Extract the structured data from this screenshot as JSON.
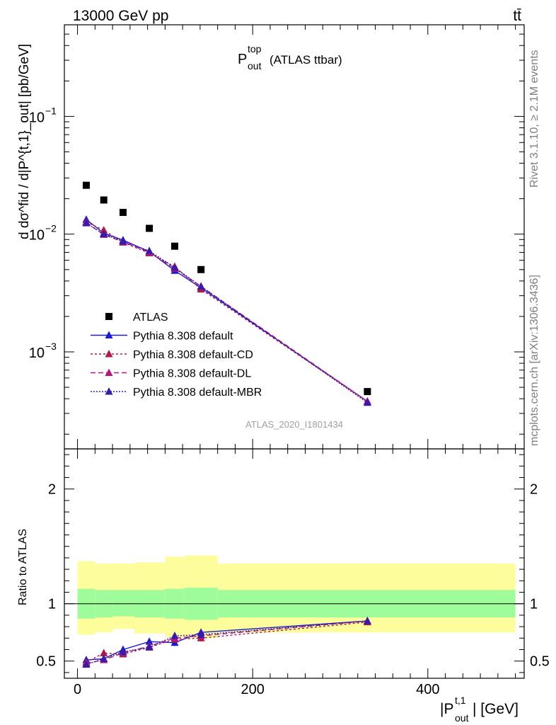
{
  "header": {
    "energy_label": "13000 GeV pp",
    "process_label": "tt̄"
  },
  "side_text": {
    "rivet": "Rivet 3.1.10, ≥ 2.1M events",
    "mcplots": "mcplots.cern.ch [arXiv:1306.3436]"
  },
  "chart_data": [
    {
      "panel": "main",
      "type": "scatter",
      "title_main": "P",
      "title_sup": "top",
      "title_sub": "out",
      "title_suffix": "(ATLAS ttbar)",
      "ylabel": "d dσ^fid / d|P^{t,1}_out| [pb/GeV]",
      "y_scale": "log",
      "ylim": [
        0.00015,
        0.6
      ],
      "xlim": [
        -15,
        510
      ],
      "y_tick_labels": [
        {
          "value": 0.1,
          "base": "10",
          "exp": "−1"
        },
        {
          "value": 0.01,
          "base": "10",
          "exp": "−2"
        },
        {
          "value": 0.001,
          "base": "10",
          "exp": "−3"
        }
      ],
      "analysis_label": "ATLAS_2020_I1801434",
      "series": [
        {
          "name": "ATLAS",
          "marker": "square",
          "color": "#000000",
          "dash": "none",
          "x": [
            10,
            30,
            52,
            82,
            111,
            141,
            331
          ],
          "y": [
            0.026,
            0.0195,
            0.0153,
            0.0112,
            0.0079,
            0.005,
            0.00046
          ]
        },
        {
          "name": "Pythia 8.308 default",
          "marker": "triangle",
          "color": "#1b1bcf",
          "dash": "none",
          "x": [
            10,
            30,
            52,
            82,
            111,
            141,
            331
          ],
          "y": [
            0.0133,
            0.0102,
            0.0089,
            0.0071,
            0.0049,
            0.0035,
            0.00038
          ]
        },
        {
          "name": "Pythia 8.308 default-CD",
          "marker": "triangle",
          "color": "#b0184a",
          "dash": "3,3",
          "x": [
            10,
            30,
            52,
            82,
            111,
            141,
            331
          ],
          "y": [
            0.0127,
            0.0108,
            0.0085,
            0.0069,
            0.0053,
            0.0034,
            0.00038
          ]
        },
        {
          "name": "Pythia 8.308 default-DL",
          "marker": "triangle",
          "color": "#b0187a",
          "dash": "7,4",
          "x": [
            10,
            30,
            52,
            82,
            111,
            141,
            331
          ],
          "y": [
            0.0125,
            0.0099,
            0.0086,
            0.007,
            0.0051,
            0.0036,
            0.00038
          ]
        },
        {
          "name": "Pythia 8.308 default-MBR",
          "marker": "triangle",
          "color": "#3a1aa8",
          "dash": "2,2",
          "x": [
            10,
            30,
            52,
            82,
            111,
            141,
            331
          ],
          "y": [
            0.0124,
            0.01,
            0.0087,
            0.0072,
            0.0052,
            0.0036,
            0.00037
          ]
        }
      ]
    },
    {
      "panel": "ratio",
      "type": "line",
      "ylabel": "Ratio to ATLAS",
      "xlabel_main": "|P",
      "xlabel_sup": "t,1",
      "xlabel_sub": "out",
      "xlabel_suffix": "| [GeV]",
      "ylim": [
        0.35,
        2.35
      ],
      "xlim": [
        -15,
        510
      ],
      "y_ticks": [
        0.5,
        1,
        2
      ],
      "y_tick_labels": [
        "0.5",
        "1",
        "2"
      ],
      "x_ticks": [
        0,
        200,
        400
      ],
      "x_tick_labels": [
        "0",
        "200",
        "400"
      ],
      "bands": {
        "edges": [
          0,
          20,
          40,
          65,
          100,
          122,
          160,
          500
        ],
        "inner_low": [
          0.87,
          0.88,
          0.89,
          0.88,
          0.87,
          0.86,
          0.88
        ],
        "inner_high": [
          1.13,
          1.12,
          1.12,
          1.12,
          1.13,
          1.14,
          1.12
        ],
        "outer_low": [
          0.73,
          0.75,
          0.78,
          0.74,
          0.71,
          0.7,
          0.75
        ],
        "outer_high": [
          1.37,
          1.35,
          1.35,
          1.36,
          1.41,
          1.42,
          1.35
        ],
        "inner_color": "#9efd9a",
        "outer_color": "#fdfd9c"
      },
      "series": [
        {
          "name": "Pythia 8.308 default",
          "color": "#1b1bcf",
          "dash": "none",
          "x": [
            10,
            30,
            52,
            82,
            111,
            141,
            331
          ],
          "y": [
            0.51,
            0.52,
            0.6,
            0.67,
            0.66,
            0.75,
            0.85
          ],
          "err": [
            0.025,
            0.02,
            0.02,
            0.025,
            0.03,
            0.03,
            0.025
          ]
        },
        {
          "name": "Pythia 8.308 default-CD",
          "color": "#b0184a",
          "dash": "3,3",
          "x": [
            10,
            30,
            52,
            82,
            111,
            141,
            331
          ],
          "y": [
            0.49,
            0.57,
            0.56,
            0.62,
            0.69,
            0.7,
            0.84
          ],
          "err": [
            0.025,
            0.02,
            0.02,
            0.025,
            0.03,
            0.03,
            0.025
          ]
        },
        {
          "name": "Pythia 8.308 default-DL",
          "color": "#b0187a",
          "dash": "7,4",
          "x": [
            10,
            30,
            52,
            82,
            111,
            141,
            331
          ],
          "y": [
            0.48,
            0.51,
            0.57,
            0.63,
            0.7,
            0.72,
            0.85
          ],
          "err": [
            0.025,
            0.02,
            0.02,
            0.025,
            0.03,
            0.03,
            0.025
          ]
        },
        {
          "name": "Pythia 8.308 default-MBR",
          "color": "#3a1aa8",
          "dash": "2,2",
          "x": [
            10,
            30,
            52,
            82,
            111,
            141,
            331
          ],
          "y": [
            0.47,
            0.52,
            0.58,
            0.62,
            0.72,
            0.73,
            0.85
          ],
          "err": [
            0.025,
            0.02,
            0.02,
            0.025,
            0.03,
            0.03,
            0.025
          ]
        }
      ]
    }
  ]
}
